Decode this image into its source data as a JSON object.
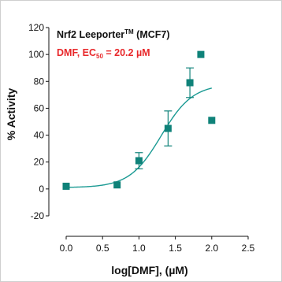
{
  "chart_data": {
    "type": "scatter",
    "title_main": "Nrf2 Leeporter",
    "title_tm": "TM",
    "title_rest": " (MCF7)",
    "subtitle_pre": "DMF, EC",
    "subtitle_sub": "50",
    "subtitle_post": " = 20.2 µM",
    "subtitle_color": "#e8272a",
    "xlabel": "log[DMF], (µM)",
    "ylabel": "% Activity",
    "xlim": [
      0.0,
      2.5
    ],
    "ylim": [
      -20,
      120
    ],
    "xticks": [
      "0.0",
      "0.5",
      "1.0",
      "1.5",
      "2.0",
      "2.5"
    ],
    "yticks": [
      "-20",
      "0",
      "20",
      "40",
      "60",
      "80",
      "100",
      "120"
    ],
    "grid": false,
    "marker_color": "#0f8279",
    "curve_color": "#1a9a93",
    "points": [
      {
        "x": 0.0,
        "y": 2,
        "err": 0
      },
      {
        "x": 0.7,
        "y": 3,
        "err": 0
      },
      {
        "x": 1.0,
        "y": 21,
        "err": 6
      },
      {
        "x": 1.4,
        "y": 45,
        "err": 13
      },
      {
        "x": 1.7,
        "y": 79,
        "err": 11
      },
      {
        "x": 1.85,
        "y": 100,
        "err": 0
      },
      {
        "x": 2.0,
        "y": 51,
        "err": 0
      }
    ],
    "fit": {
      "bottom": 1,
      "top": 78,
      "log_ec50": 1.305,
      "hill_slope": 2.0
    }
  }
}
